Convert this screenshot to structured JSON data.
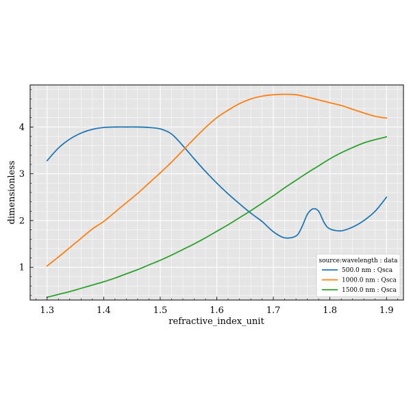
{
  "chart_data": {
    "type": "line",
    "xlabel": "refractive_index_unit",
    "ylabel": "dimensionless",
    "xlim": [
      1.27,
      1.93
    ],
    "ylim": [
      0.3,
      4.9
    ],
    "x_ticks": [
      "1.3",
      "1.4",
      "1.5",
      "1.6",
      "1.7",
      "1.8",
      "1.9"
    ],
    "y_ticks": [
      "1",
      "2",
      "3",
      "4"
    ],
    "grid": true,
    "legend": {
      "title": "source:wavelength : data",
      "placement": "lower-right"
    },
    "series": [
      {
        "name": "500.0 nm : Qsca",
        "color": "#1f77b4",
        "x": [
          1.3,
          1.32,
          1.34,
          1.36,
          1.38,
          1.4,
          1.42,
          1.44,
          1.46,
          1.48,
          1.5,
          1.52,
          1.54,
          1.56,
          1.58,
          1.6,
          1.62,
          1.64,
          1.66,
          1.68,
          1.7,
          1.72,
          1.74,
          1.75,
          1.76,
          1.77,
          1.78,
          1.79,
          1.8,
          1.82,
          1.84,
          1.86,
          1.88,
          1.9
        ],
        "y": [
          3.28,
          3.55,
          3.74,
          3.87,
          3.95,
          3.99,
          4.0,
          4.0,
          4.0,
          3.99,
          3.96,
          3.85,
          3.6,
          3.32,
          3.05,
          2.8,
          2.57,
          2.36,
          2.16,
          1.98,
          1.76,
          1.63,
          1.67,
          1.85,
          2.13,
          2.25,
          2.2,
          1.95,
          1.82,
          1.78,
          1.86,
          2.0,
          2.2,
          2.5
        ]
      },
      {
        "name": "1000.0 nm : Qsca",
        "color": "#ff7f0e",
        "x": [
          1.3,
          1.32,
          1.34,
          1.36,
          1.38,
          1.4,
          1.42,
          1.44,
          1.46,
          1.48,
          1.5,
          1.52,
          1.54,
          1.56,
          1.58,
          1.6,
          1.62,
          1.64,
          1.66,
          1.68,
          1.7,
          1.72,
          1.74,
          1.76,
          1.78,
          1.8,
          1.82,
          1.84,
          1.86,
          1.88,
          1.9
        ],
        "y": [
          1.03,
          1.22,
          1.42,
          1.62,
          1.82,
          1.98,
          2.18,
          2.38,
          2.58,
          2.8,
          3.02,
          3.25,
          3.5,
          3.75,
          3.99,
          4.2,
          4.36,
          4.5,
          4.6,
          4.66,
          4.69,
          4.7,
          4.69,
          4.64,
          4.58,
          4.52,
          4.46,
          4.38,
          4.3,
          4.23,
          4.19
        ]
      },
      {
        "name": "1500.0 nm : Qsca",
        "color": "#2ca02c",
        "x": [
          1.3,
          1.32,
          1.34,
          1.36,
          1.38,
          1.4,
          1.42,
          1.44,
          1.46,
          1.48,
          1.5,
          1.52,
          1.54,
          1.56,
          1.58,
          1.6,
          1.62,
          1.64,
          1.66,
          1.68,
          1.7,
          1.72,
          1.74,
          1.76,
          1.78,
          1.8,
          1.82,
          1.84,
          1.86,
          1.88,
          1.9
        ],
        "y": [
          0.36,
          0.42,
          0.48,
          0.55,
          0.62,
          0.69,
          0.77,
          0.86,
          0.95,
          1.05,
          1.15,
          1.26,
          1.38,
          1.5,
          1.63,
          1.77,
          1.91,
          2.06,
          2.21,
          2.37,
          2.53,
          2.7,
          2.86,
          3.02,
          3.17,
          3.32,
          3.45,
          3.56,
          3.66,
          3.73,
          3.79
        ]
      }
    ]
  }
}
